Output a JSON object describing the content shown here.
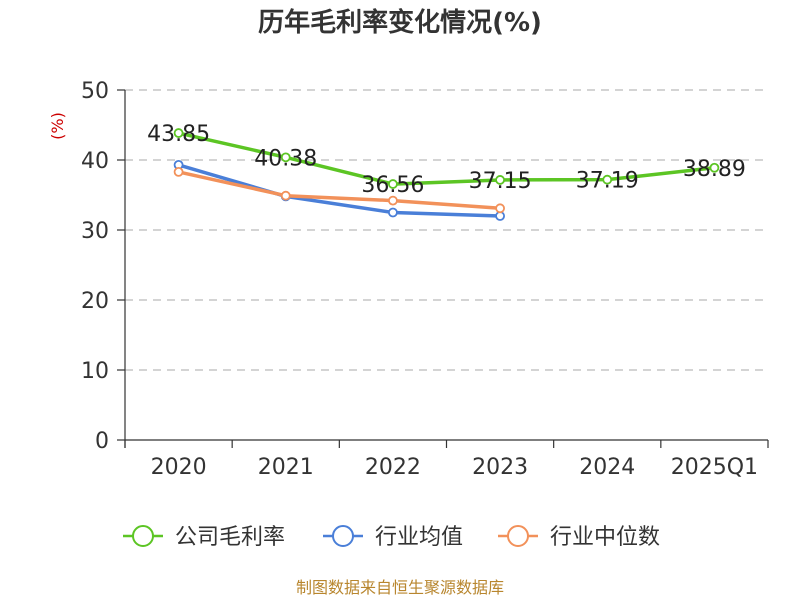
{
  "chart_data": {
    "type": "line",
    "title": "历年毛利率变化情况(%)",
    "ylabel": "(%)",
    "categories": [
      "2020",
      "2021",
      "2022",
      "2023",
      "2024",
      "2025Q1"
    ],
    "ylim": [
      0,
      50
    ],
    "yticks": [
      "0",
      "10",
      "20",
      "30",
      "40",
      "50"
    ],
    "grid": true,
    "legend_position": "bottom",
    "series": [
      {
        "name": "公司毛利率",
        "color": "#5cc524",
        "values": [
          43.85,
          40.38,
          36.56,
          37.15,
          37.19,
          38.89
        ],
        "labels": [
          "43.85",
          "40.38",
          "36.56",
          "37.15",
          "37.19",
          "38.89"
        ]
      },
      {
        "name": "行业均值",
        "color": "#4a7fd8",
        "values": [
          39.3,
          34.8,
          32.5,
          32.0,
          null,
          null
        ]
      },
      {
        "name": "行业中位数",
        "color": "#f2915a",
        "values": [
          38.3,
          34.9,
          34.2,
          33.1,
          null,
          null
        ]
      }
    ],
    "source": "制图数据来自恒生聚源数据库"
  }
}
